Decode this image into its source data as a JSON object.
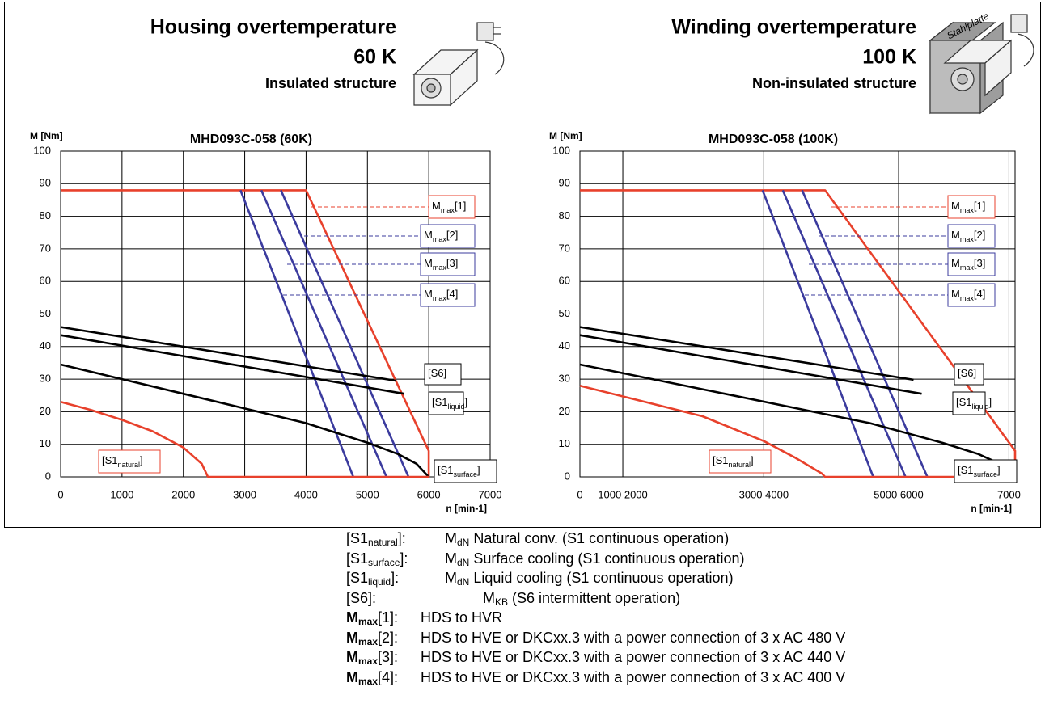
{
  "panels": [
    {
      "heading": "Housing overtemperature",
      "subheading": "60 K",
      "caption": "Insulated structure"
    },
    {
      "heading": "Winding overtemperature",
      "subheading": "100 K",
      "caption": "Non-insulated structure",
      "image_label": "Stahlplatte"
    }
  ],
  "chart_data": [
    {
      "type": "line",
      "title": "MHD093C-058 (60K)",
      "y_label": "M [Nm]",
      "x_label": "n [min-1]",
      "xlim": [
        0,
        7000
      ],
      "xticks": [
        0,
        1000,
        2000,
        3000,
        4000,
        5000,
        6000,
        7000
      ],
      "ylim": [
        0,
        100
      ],
      "yticks": [
        0,
        10,
        20,
        30,
        40,
        50,
        60,
        70,
        80,
        90,
        100
      ],
      "grid": true,
      "series": [
        {
          "name": "M",
          "name_sub": "max",
          "name_end": "[1]",
          "color": "#e8412c",
          "x": [
            0,
            4000,
            6000,
            6000
          ],
          "values": [
            88,
            88,
            8,
            0
          ]
        },
        {
          "name": "M",
          "name_sub": "max",
          "name_end": "[2]",
          "color": "#3b3b9e",
          "x": [
            3590,
            5670
          ],
          "values": [
            88,
            0
          ]
        },
        {
          "name": "M",
          "name_sub": "max",
          "name_end": "[3]",
          "color": "#3b3b9e",
          "x": [
            3270,
            5310
          ],
          "values": [
            88,
            0
          ]
        },
        {
          "name": "M",
          "name_sub": "max",
          "name_end": "[4]",
          "color": "#3b3b9e",
          "x": [
            2930,
            4770
          ],
          "values": [
            88,
            0
          ]
        },
        {
          "name": "[S6]",
          "color": "#000000",
          "x": [
            0,
            5470
          ],
          "values": [
            46,
            29.5
          ]
        },
        {
          "name": "[S1",
          "name_sub": "liquid",
          "name_end": "]",
          "color": "#000000",
          "x": [
            0,
            5600
          ],
          "values": [
            43.5,
            25.5
          ]
        },
        {
          "name": "[S1",
          "name_sub": "surface",
          "name_end": "]",
          "color": "#000000",
          "x": [
            0,
            1000,
            2000,
            3000,
            4000,
            5000,
            5500,
            5800,
            6000
          ],
          "values": [
            34.5,
            30,
            25.5,
            21,
            16.5,
            10.5,
            7,
            4,
            0
          ]
        },
        {
          "name": "[S1",
          "name_sub": "natural",
          "name_end": "]",
          "color": "#e8412c",
          "x": [
            0,
            500,
            1000,
            1500,
            2000,
            2300,
            2400,
            6000
          ],
          "values": [
            23,
            20.5,
            17.5,
            14,
            9,
            4,
            0,
            0
          ]
        }
      ]
    },
    {
      "type": "line",
      "title": "MHD093C-058 (100K)",
      "y_label": "M [Nm]",
      "x_label": "n [min-1]",
      "xlim": [
        0,
        7100
      ],
      "xticks": [
        0,
        {
          "value": 700,
          "label": "1000 2000"
        },
        {
          "value": 3000,
          "label": "3000 4000"
        },
        {
          "value": 5200,
          "label": "5000 6000"
        },
        7000
      ],
      "ylim": [
        0,
        100
      ],
      "yticks": [
        0,
        10,
        20,
        30,
        40,
        50,
        60,
        70,
        80,
        90,
        100
      ],
      "grid": true,
      "series": [
        {
          "name": "M",
          "name_sub": "max",
          "name_end": "[1]",
          "color": "#e8412c",
          "x": [
            0,
            4000,
            7100,
            7100
          ],
          "values": [
            88,
            88,
            8,
            0
          ]
        },
        {
          "name": "M",
          "name_sub": "max",
          "name_end": "[2]",
          "color": "#3b3b9e",
          "x": [
            3625,
            5668
          ],
          "values": [
            88,
            0
          ]
        },
        {
          "name": "M",
          "name_sub": "max",
          "name_end": "[3]",
          "color": "#3b3b9e",
          "x": [
            3310,
            5312
          ],
          "values": [
            88,
            0
          ]
        },
        {
          "name": "M",
          "name_sub": "max",
          "name_end": "[4]",
          "color": "#3b3b9e",
          "x": [
            2980,
            4785
          ],
          "values": [
            88,
            0
          ]
        },
        {
          "name": "[S6]",
          "color": "#000000",
          "x": [
            0,
            5444
          ],
          "values": [
            46,
            29.8
          ]
        },
        {
          "name": "[S1",
          "name_sub": "liquid",
          "name_end": "]",
          "color": "#000000",
          "x": [
            0,
            5576
          ],
          "values": [
            43.5,
            25.5
          ]
        },
        {
          "name": "[S1",
          "name_sub": "surface",
          "name_end": "]",
          "color": "#000000",
          "x": [
            0,
            1182,
            2364,
            3546,
            4728,
            5910,
            6501,
            6856,
            7100
          ],
          "values": [
            34.5,
            30,
            25.5,
            21,
            16.5,
            10.5,
            7,
            4,
            0
          ]
        },
        {
          "name": "[S1",
          "name_sub": "natural",
          "name_end": "]",
          "color": "#e8412c",
          "x": [
            0,
            1000,
            2000,
            3000,
            3500,
            3950,
            4000,
            7100
          ],
          "values": [
            28,
            23.3,
            18.6,
            11,
            6,
            1,
            0,
            0
          ]
        }
      ]
    }
  ],
  "notes": [
    {
      "label": "[S1",
      "label_sub": "natural",
      "label_end": "]:",
      "symbol": "M",
      "symbol_sub": "dN",
      "text": "Natural conv. (S1 continuous operation)"
    },
    {
      "label": "[S1",
      "label_sub": "surface",
      "label_end": "]:",
      "symbol": "M",
      "symbol_sub": "dN",
      "text": "Surface cooling (S1 continuous operation)"
    },
    {
      "label": "[S1",
      "label_sub": "liquid",
      "label_end": "]:",
      "symbol": "M",
      "symbol_sub": "dN",
      "text": "Liquid cooling (S1 continuous operation)"
    },
    {
      "label": "[S6]:",
      "symbol": "M",
      "symbol_sub": "KB",
      "text": "(S6 intermittent operation)"
    },
    {
      "label": "M",
      "label_sub": "max",
      "label_end": "[1]:",
      "bold": true,
      "text": "HDS to HVR"
    },
    {
      "label": "M",
      "label_sub": "max",
      "label_end": "[2]:",
      "bold": true,
      "text": "HDS to HVE or DKCxx.3 with a power connection of 3 x AC 480 V"
    },
    {
      "label": "M",
      "label_sub": "max",
      "label_end": "[3]:",
      "bold": true,
      "text": "HDS to HVE or DKCxx.3 with a power connection of 3 x AC 440 V"
    },
    {
      "label": "M",
      "label_sub": "max",
      "label_end": "[4]:",
      "bold": true,
      "text": "HDS to HVE or DKCxx.3 with a power connection of 3 x AC 400 V"
    }
  ]
}
